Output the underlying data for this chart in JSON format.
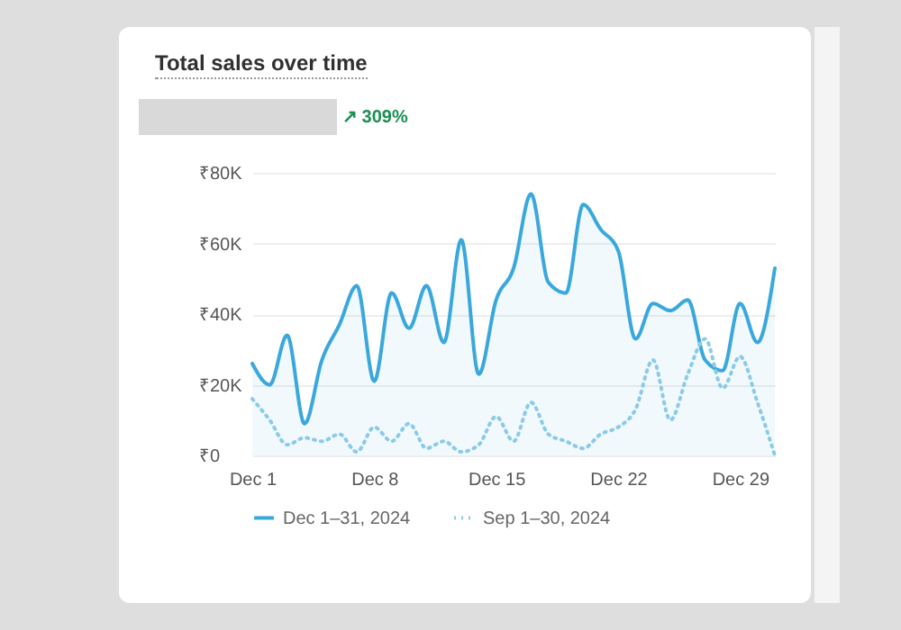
{
  "chart_data": {
    "type": "line",
    "title": "Total sales over time",
    "annotations": [
      "↗ 309%"
    ],
    "categories": [
      "Dec 1",
      null,
      null,
      null,
      null,
      null,
      null,
      "Dec 8",
      null,
      null,
      null,
      null,
      null,
      null,
      "Dec 15",
      null,
      null,
      null,
      null,
      null,
      null,
      "Dec 22",
      null,
      null,
      null,
      null,
      null,
      null,
      "Dec 29",
      null,
      null
    ],
    "series": [
      {
        "name": "Dec 1–31, 2024",
        "type": "area",
        "color": "#3aa8dc",
        "line_style": "solid",
        "values": [
          26000,
          20000,
          34000,
          9000,
          27000,
          37000,
          48000,
          21000,
          46000,
          36000,
          48000,
          32000,
          61000,
          23000,
          44000,
          53000,
          74000,
          49000,
          46000,
          71000,
          64000,
          58000,
          33000,
          43000,
          41000,
          44000,
          27000,
          24000,
          43000,
          32000,
          53000
        ]
      },
      {
        "name": "Sep 1–30, 2024",
        "type": "line",
        "color": "#8ccbe8",
        "line_style": "dotted",
        "values": [
          16000,
          10000,
          3000,
          5000,
          4000,
          6000,
          1000,
          8000,
          4000,
          9000,
          2000,
          4000,
          1000,
          3000,
          11000,
          4000,
          15000,
          6000,
          4000,
          2000,
          6000,
          8000,
          13000,
          27000,
          10000,
          23000,
          33000,
          19000,
          28000,
          15000,
          0
        ]
      }
    ],
    "ylim": [
      0,
      80000
    ],
    "yticks": [
      {
        "value": 0,
        "label": "₹0"
      },
      {
        "value": 20000,
        "label": "₹20K"
      },
      {
        "value": 40000,
        "label": "₹40K"
      },
      {
        "value": 60000,
        "label": "₹60K"
      },
      {
        "value": 80000,
        "label": "₹80K"
      }
    ],
    "grid": "y",
    "legend": "bottom"
  }
}
